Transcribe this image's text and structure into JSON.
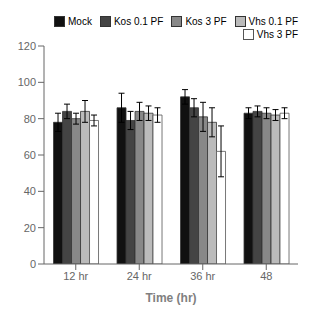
{
  "chart_data": {
    "type": "bar",
    "xlabel": "Time (hr)",
    "categories": [
      "12 hr",
      "24 hr",
      "36 hr",
      "48"
    ],
    "series": [
      {
        "name": "Mock",
        "color": "#111111",
        "values": [
          78,
          86,
          92,
          83
        ],
        "errors": [
          5,
          8,
          4,
          3
        ]
      },
      {
        "name": "Kos 0.1 PF",
        "color": "#444444",
        "values": [
          84,
          79,
          86,
          84
        ],
        "errors": [
          4,
          5,
          5,
          3
        ]
      },
      {
        "name": "Kos 3 PF",
        "color": "#888888",
        "values": [
          80,
          84,
          81,
          83
        ],
        "errors": [
          3,
          5,
          8,
          3
        ]
      },
      {
        "name": "Vhs 0.1 PF",
        "color": "#bbbbbb",
        "values": [
          84,
          83,
          78,
          82
        ],
        "errors": [
          6,
          4,
          8,
          3
        ]
      },
      {
        "name": "Vhs 3 PF",
        "color": "#ffffff",
        "values": [
          79,
          82,
          62,
          83
        ],
        "errors": [
          3,
          4,
          14,
          3
        ]
      }
    ],
    "ylim": [
      0,
      120
    ],
    "yticks": [
      0,
      20,
      40,
      60,
      80,
      100,
      120
    ],
    "grid": false,
    "legend": "upper right"
  }
}
